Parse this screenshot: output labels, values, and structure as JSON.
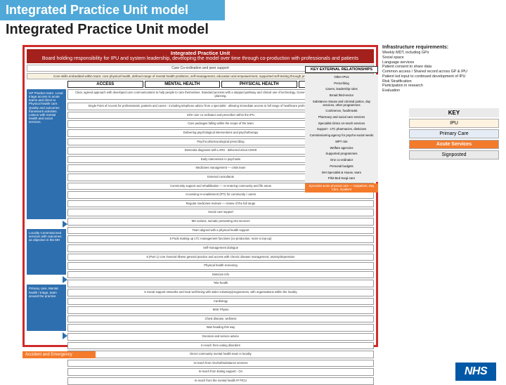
{
  "title_bar": "Integrated Practice Unit model",
  "page_title": "Integrated Practice Unit model",
  "red_header": {
    "line1": "Integrated Practice Unit",
    "line2": "Board holding responsibility for IPU and system leadership, developing the model over time through co-production with professionals and patients"
  },
  "red_sub1": "Care Co-ordination and peer support",
  "red_sub2": "Core skills embedded within team: core physical health, defined range of mental health problems, self-management, education and empowerment, supported self-testing through provision of line-limited resource",
  "column_headers": [
    "ACCESS",
    "MENTAL HEALTH",
    "PHYSICAL HEALTH",
    "DEDICATED IN-REACH"
  ],
  "palebar_top": "Clear, agreed approach with developed care communications to help people to care themselves. Standard process with a stepped pathway and clinical use of technology. Government and patient preferences included in care planning.",
  "left_blue": [
    "GP Practice team. Local triage access to acute teams and direct to Physical health care. Quality and outcomes framework activities. Liaison with mental health and social services.",
    "Locality Commissioned services with outcomes as objective in the MH",
    "Primary care, Mental health / triage, team around the practice"
  ],
  "col_access": {
    "main": "Single Point of Access for professionals, patients and carers - including telephone advice from a specialist - allowing immediate access to full range of healthcare professionals maximising first stage action",
    "b1": "24hr care co-ordinator and prescriber within the IPU"
  },
  "col_mh": [
    "Care packages falling within the scope of the team",
    "Delivering psychological interventions and psychotherapy",
    "Psycho-pharmacological prescribing",
    "Dementia diagnosis with LARS - delivered w/out CMHS",
    "Early intervention in psychosis",
    "Medicines management — crisis team",
    "External consultants",
    "Community support and rehabilitation — re-entering community and life areas",
    "Accessing re-enablement (PTI) for community / carers",
    "Regular medicines reviews — review of the full range",
    "Social care support",
    "MH actions, somatic presenting into services"
  ],
  "col_ph": [
    "Team aligned with a physical health support",
    "5 Pods making up LTC management functions (co-production, more to top-up)",
    "Self-management dialogue",
    "6 (Part 1) core General Illness general practice and access with chronic disease management, anxiety/depression",
    "Physical health screening",
    "Dietician info",
    "Tele-health",
    "5 Social support networks and local well-being with wider voluntary/programmes, with organisations within the locality",
    "Cardiology",
    "MSK Physio",
    "Chest disease, wellness",
    "Was heading this way",
    "Decision and service advice"
  ],
  "col_dir": [
    "In-reach from eating disorders",
    "Direct community mental health team in locality",
    "In-reach from Alcohol/Substance services",
    "In-reach from Eating support - OA",
    "In-reach from the mental health IP PICU"
  ],
  "ker_header": "KEY EXTERNAL RELATIONSHIPS",
  "ker_items": [
    "Other IPUs",
    "Prescribing",
    "Carers, leadership roles",
    "Broad third-sector",
    "Substance misuse and criminal justice, day services, other programmes",
    "Continence, food/meals",
    "Pharmacy and social care services",
    "Specialist clinics on-reach services",
    "Support - LTC pharmacies, dieticians",
    "Commissioning agency for psycho-social needs",
    "MPT role",
    "Welfare agencies",
    "Supported programmes",
    "One co-ordinator",
    "Personal budgets",
    "MH Specialist & House, team",
    "Pilot Bed Surgi-care"
  ],
  "ker_orange": "Specialist acute physical care — Outpatient, Day Care, Inpatient",
  "ae_bar": "Accident and Emergency",
  "sidebar": {
    "title": "Infrastructure requirements:",
    "items": [
      "Weekly MDT, including GPs",
      "Social space",
      "Language services",
      "Patient consent to share data",
      "Common access / Shared record across GP & IPU",
      "Patient led input to continued development of IPU",
      "Risk Stratification",
      "Participation in research",
      "Evaluation"
    ]
  },
  "key": {
    "header": "KEY",
    "rows": [
      {
        "label": "IPU",
        "cls": "k-ipu"
      },
      {
        "label": "Primary Care",
        "cls": "k-pc"
      },
      {
        "label": "Acute Services",
        "cls": "k-acute"
      },
      {
        "label": "Signposted",
        "cls": "k-sign"
      }
    ]
  },
  "nhs_text": "NHS",
  "page_number": "5",
  "colors": {
    "title_bg": "#4fa8d8",
    "red_border": "#d02a2a",
    "red_hdr_bg": "#a3201c",
    "blue_box": "#2e6fb0",
    "orange": "#f47a2c",
    "nhs_bg": "#0058a6"
  }
}
